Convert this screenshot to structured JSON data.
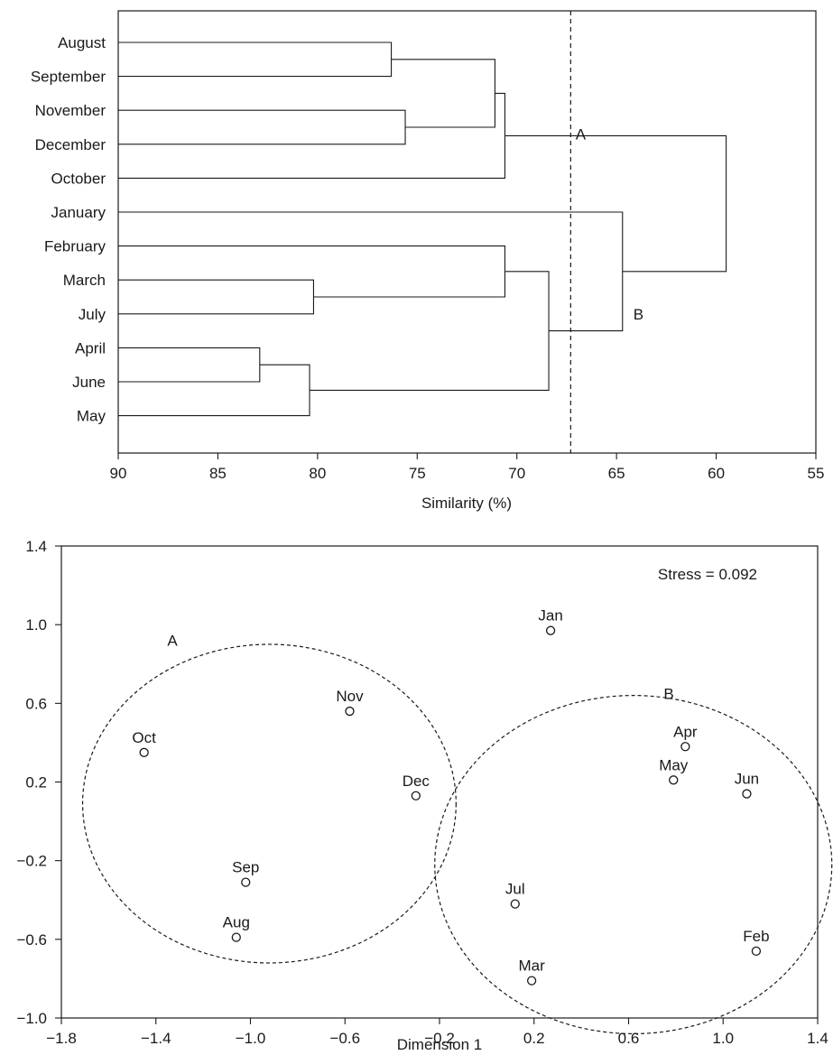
{
  "chart_data": [
    {
      "type": "dendrogram",
      "xlabel": "Similarity (%)",
      "xlim": [
        90,
        55
      ],
      "xticks": [
        90,
        85,
        80,
        75,
        70,
        65,
        60,
        55
      ],
      "leaves": [
        "August",
        "September",
        "November",
        "December",
        "October",
        "January",
        "February",
        "March",
        "July",
        "April",
        "June",
        "May"
      ],
      "merges": [
        {
          "id": "AugSep",
          "children": [
            "August",
            "September"
          ],
          "similarity": 76.3
        },
        {
          "id": "NovDec",
          "children": [
            "November",
            "December"
          ],
          "similarity": 75.6
        },
        {
          "id": "AugSepNovDec",
          "children": [
            "AugSep",
            "NovDec"
          ],
          "similarity": 71.1
        },
        {
          "id": "A",
          "children": [
            "AugSepNovDec",
            "October"
          ],
          "similarity": 70.6
        },
        {
          "id": "MarJul",
          "children": [
            "March",
            "July"
          ],
          "similarity": 80.2
        },
        {
          "id": "FebMarJul",
          "children": [
            "February",
            "MarJul"
          ],
          "similarity": 70.6
        },
        {
          "id": "AprJun",
          "children": [
            "April",
            "June"
          ],
          "similarity": 82.9
        },
        {
          "id": "AprJunMay",
          "children": [
            "AprJun",
            "May"
          ],
          "similarity": 80.4
        },
        {
          "id": "B",
          "children": [
            "FebMarJul",
            "AprJunMay"
          ],
          "similarity": 68.4
        },
        {
          "id": "JanB",
          "children": [
            "January",
            "B"
          ],
          "similarity": 64.7
        },
        {
          "id": "Root",
          "children": [
            "A",
            "JanB"
          ],
          "similarity": 59.5
        }
      ],
      "cutoff_similarity": 67.3,
      "group_labels": [
        {
          "text": "A",
          "x": 66.8,
          "row": 2.7
        },
        {
          "text": "B",
          "x": 63.9,
          "row": 8.0
        }
      ]
    },
    {
      "type": "scatter",
      "xlabel": "Dimension 1",
      "ylabel": "",
      "xlim": [
        -1.8,
        1.4
      ],
      "ylim": [
        -1.0,
        1.4
      ],
      "xticks": [
        -1.8,
        -1.4,
        -1.0,
        -0.6,
        -0.2,
        0.2,
        0.6,
        1.0,
        1.4
      ],
      "yticks": [
        1.4,
        1.0,
        0.6,
        0.2,
        -0.2,
        -0.6,
        -1.0
      ],
      "xtick_labels": [
        "−1.8",
        "−1.4",
        "−1.0",
        "−0.6",
        "−0.2",
        "0.2",
        "0.6",
        "1.0",
        "1.4"
      ],
      "ytick_labels": [
        "1.4",
        "1.0",
        "0.6",
        "0.2",
        "−0.2",
        "−0.6",
        "−1.0"
      ],
      "annotation": "Stress = 0.092",
      "points": [
        {
          "label": "Jan",
          "x": 0.27,
          "y": 0.97
        },
        {
          "label": "Feb",
          "x": 1.14,
          "y": -0.66
        },
        {
          "label": "Mar",
          "x": 0.19,
          "y": -0.81
        },
        {
          "label": "Apr",
          "x": 0.84,
          "y": 0.38
        },
        {
          "label": "May",
          "x": 0.79,
          "y": 0.21
        },
        {
          "label": "Jun",
          "x": 1.1,
          "y": 0.14
        },
        {
          "label": "Jul",
          "x": 0.12,
          "y": -0.42
        },
        {
          "label": "Aug",
          "x": -1.06,
          "y": -0.59
        },
        {
          "label": "Sep",
          "x": -1.02,
          "y": -0.31
        },
        {
          "label": "Oct",
          "x": -1.45,
          "y": 0.35
        },
        {
          "label": "Nov",
          "x": -0.58,
          "y": 0.56
        },
        {
          "label": "Dec",
          "x": -0.3,
          "y": 0.13
        }
      ],
      "groups": [
        {
          "label": "A",
          "center": [
            -0.92,
            0.09
          ],
          "radius": [
            0.79,
            0.81
          ],
          "label_at": [
            -1.33,
            0.92
          ]
        },
        {
          "label": "B",
          "center": [
            0.62,
            -0.22
          ],
          "radius": [
            0.84,
            0.86
          ],
          "label_at": [
            0.77,
            0.65
          ]
        }
      ]
    }
  ]
}
